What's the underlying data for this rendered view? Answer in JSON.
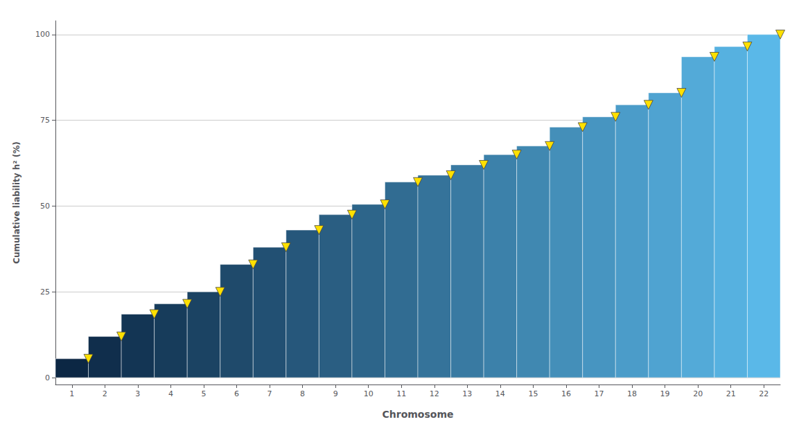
{
  "chart_data": {
    "type": "bar",
    "xlabel": "Chromosome",
    "ylabel": "Cumulative liability h² (%)",
    "x": [
      1,
      2,
      3,
      4,
      5,
      6,
      7,
      8,
      9,
      10,
      11,
      12,
      13,
      14,
      15,
      16,
      17,
      18,
      19,
      20,
      21,
      22
    ],
    "series": [
      {
        "type": "bar",
        "values": [
          5.5,
          12.0,
          18.5,
          21.5,
          25.0,
          33.0,
          38.0,
          43.0,
          47.5,
          50.5,
          57.0,
          59.0,
          62.0,
          65.0,
          67.5,
          73.0,
          76.0,
          79.5,
          83.0,
          93.5,
          96.5,
          100.0
        ],
        "colors": [
          "#0c2744",
          "#102e4c",
          "#133554",
          "#173c5b",
          "#1b4363",
          "#1f4a6b",
          "#225073",
          "#26577b",
          "#2a5e82",
          "#2d658a",
          "#316c92",
          "#35739a",
          "#397aa2",
          "#3c81aa",
          "#4088b1",
          "#448fb9",
          "#4795c1",
          "#4b9cc9",
          "#4fa3d1",
          "#53aad8",
          "#56b1e0",
          "#5ab8e8"
        ]
      },
      {
        "type": "scatter",
        "marker": "triangle_down",
        "color": "#FFE000",
        "values": [
          5.5,
          12.0,
          18.5,
          21.5,
          25.0,
          33.0,
          38.0,
          43.0,
          47.5,
          50.5,
          57.0,
          59.0,
          62.0,
          65.0,
          67.5,
          73.0,
          76.0,
          79.5,
          83.0,
          93.5,
          96.5,
          100.0
        ]
      }
    ],
    "xlim": [
      0.5,
      22.5
    ],
    "xticks": [
      1,
      2,
      3,
      4,
      5,
      6,
      7,
      8,
      9,
      10,
      11,
      12,
      13,
      14,
      15,
      16,
      17,
      18,
      19,
      20,
      21,
      22
    ],
    "ylim": [
      -2,
      104
    ],
    "yticks": [
      0,
      25,
      50,
      75,
      100
    ],
    "grid": true
  }
}
